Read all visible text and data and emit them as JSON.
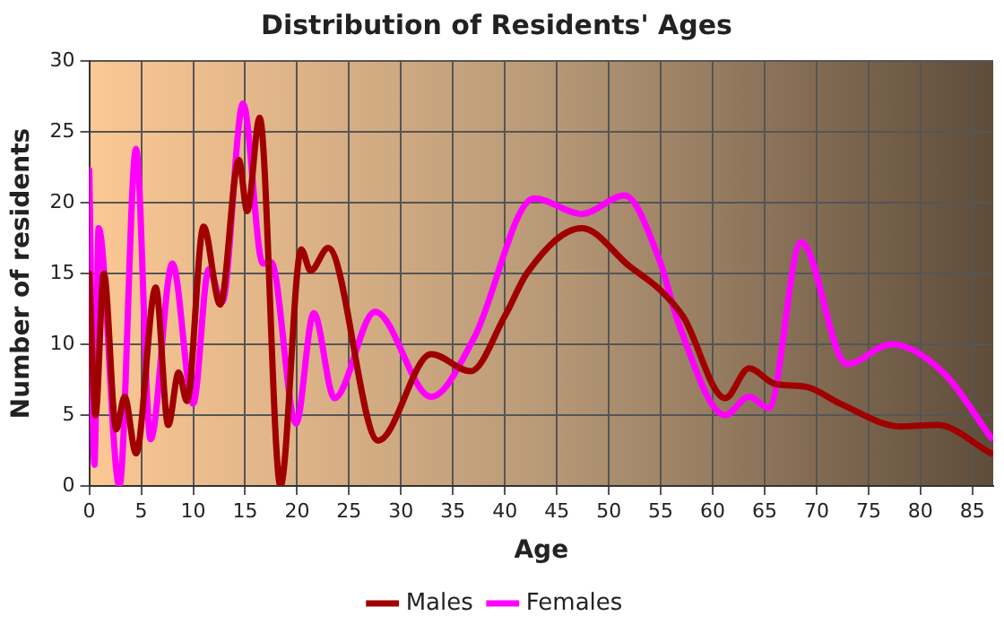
{
  "chart_data": {
    "type": "line",
    "title": "Distribution of Residents' Ages",
    "xlabel": "Age",
    "ylabel": "Number of residents",
    "xlim": [
      0,
      87
    ],
    "xticks": [
      0,
      5,
      10,
      15,
      20,
      25,
      30,
      35,
      40,
      45,
      50,
      55,
      60,
      65,
      70,
      75,
      80,
      85
    ],
    "ylim": [
      0,
      30
    ],
    "yticks": [
      0,
      5,
      10,
      15,
      20,
      25,
      30
    ],
    "grid": true,
    "legend": "bottom",
    "marker": "none",
    "line_style": "solid",
    "series": [
      {
        "name": "Males",
        "color": "#a00000",
        "x": [
          0,
          0.6,
          1.4,
          2.6,
          3.4,
          4.5,
          6.4,
          7.6,
          8.6,
          9.4,
          11,
          12.6,
          14.4,
          15.2,
          16.4,
          18.4,
          20.4,
          21.3,
          23,
          27.8,
          32.9,
          36.7,
          40,
          42.2,
          47.4,
          52,
          55,
          57.2,
          61.2,
          63.5,
          66,
          69,
          72.3,
          78.1,
          81.6,
          86.8
        ],
        "values": [
          15,
          5,
          15,
          4,
          6.3,
          2.3,
          14,
          4.3,
          8,
          6,
          18.3,
          12.8,
          23,
          19.4,
          26,
          0,
          16.7,
          15.2,
          16.8,
          3.2,
          9.3,
          8.1,
          12,
          15.1,
          18.2,
          15.5,
          13.8,
          11.9,
          6.2,
          8.3,
          7.2,
          7,
          5.8,
          4.2,
          4.3,
          2.3
        ]
      },
      {
        "name": "Females",
        "color": "#ff00ff",
        "x": [
          0,
          0.5,
          0.9,
          2.9,
          4.5,
          5.9,
          8,
          10,
          11.5,
          12.8,
          14.8,
          16.7,
          17.5,
          19.9,
          21.6,
          23.6,
          27.5,
          32.9,
          37,
          42.8,
          47.4,
          51.5,
          54.9,
          56.7,
          61.2,
          63.5,
          65.4,
          68.5,
          72.9,
          77.2,
          82.2,
          86.8
        ],
        "values": [
          22.3,
          1.5,
          18.2,
          0,
          23.8,
          3.3,
          15.7,
          5.8,
          15.3,
          13,
          27,
          15.7,
          15.8,
          4.4,
          12.2,
          6.2,
          12.3,
          6.3,
          10.4,
          20.3,
          19.2,
          20.5,
          15.9,
          11.5,
          5,
          6.3,
          5.5,
          17.2,
          8.6,
          10,
          8,
          3.4
        ]
      }
    ]
  }
}
